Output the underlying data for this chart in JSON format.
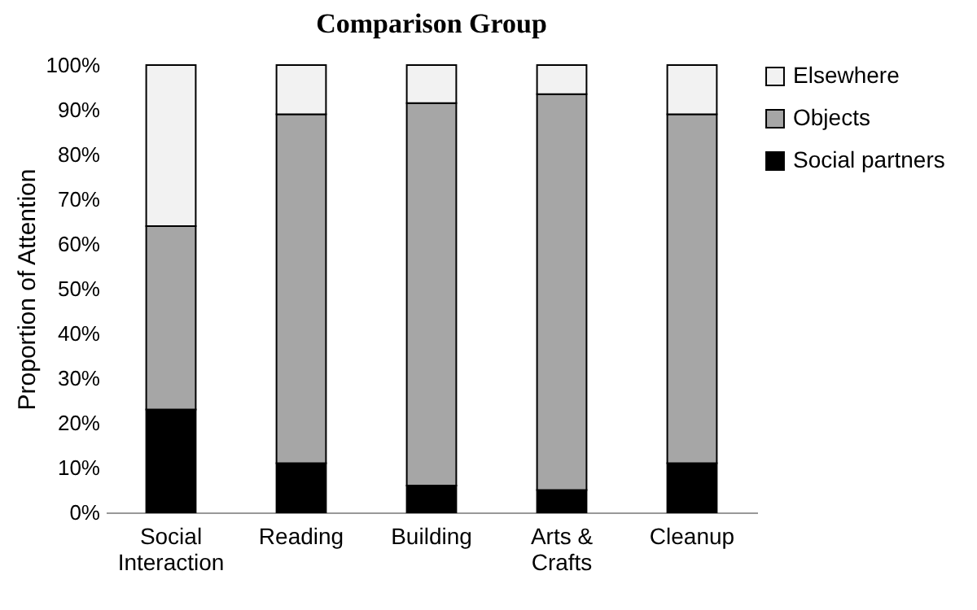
{
  "chart_data": {
    "type": "bar",
    "title": "Comparison Group",
    "ylabel": "Proportion of Attention",
    "categories": [
      "Social Interaction",
      "Reading",
      "Building",
      "Arts & Crafts",
      "Cleanup"
    ],
    "stacked": true,
    "series": [
      {
        "name": "Social partners",
        "color": "#000000",
        "values": [
          23,
          11,
          6,
          5,
          11
        ]
      },
      {
        "name": "Objects",
        "color": "#a6a6a6",
        "values": [
          41,
          78,
          85.5,
          88.5,
          78
        ]
      },
      {
        "name": "Elsewhere",
        "color": "#f2f2f2",
        "values": [
          36,
          11,
          8.5,
          6.5,
          11
        ]
      }
    ],
    "ylim": [
      0,
      100
    ],
    "yticks": [
      {
        "value": 0,
        "label": "0%"
      },
      {
        "value": 10,
        "label": "10%"
      },
      {
        "value": 20,
        "label": "20%"
      },
      {
        "value": 30,
        "label": "30%"
      },
      {
        "value": 40,
        "label": "40%"
      },
      {
        "value": 50,
        "label": "50%"
      },
      {
        "value": 60,
        "label": "60%"
      },
      {
        "value": 70,
        "label": "70%"
      },
      {
        "value": 80,
        "label": "80%"
      },
      {
        "value": 90,
        "label": "90%"
      },
      {
        "value": 100,
        "label": "100%"
      }
    ],
    "grid": false,
    "legend": "right"
  }
}
